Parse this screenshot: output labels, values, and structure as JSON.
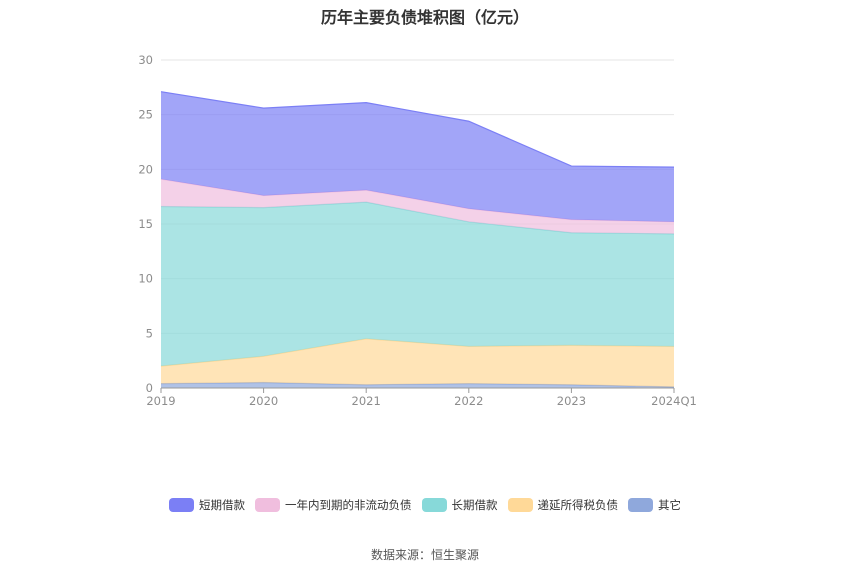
{
  "chart_data": {
    "type": "area",
    "title": "历年主要负债堆积图（亿元）",
    "categories": [
      "2019",
      "2020",
      "2021",
      "2022",
      "2023",
      "2024Q1"
    ],
    "ylim": [
      0,
      30
    ],
    "yticks": [
      "0",
      "5",
      "10",
      "15",
      "20",
      "25",
      "30"
    ],
    "stacked": true,
    "grid": "horizontal",
    "legend_position": "bottom",
    "series": [
      {
        "name": "其它",
        "color": "#8fa8dc",
        "values": [
          0.4,
          0.5,
          0.3,
          0.4,
          0.3,
          0.1
        ]
      },
      {
        "name": "递延所得税负债",
        "color": "#ffd998",
        "values": [
          1.6,
          2.4,
          4.2,
          3.4,
          3.6,
          3.7
        ]
      },
      {
        "name": "长期借款",
        "color": "#87d9d9",
        "values": [
          14.6,
          13.6,
          12.5,
          11.4,
          10.3,
          10.3
        ]
      },
      {
        "name": "一年内到期的非流动负债",
        "color": "#f0bede",
        "values": [
          2.5,
          1.1,
          1.1,
          1.2,
          1.2,
          1.1
        ]
      },
      {
        "name": "短期借款",
        "color": "#7b7ff5",
        "values": [
          8.0,
          8.0,
          8.0,
          8.0,
          4.9,
          5.0
        ]
      }
    ],
    "legend_order": [
      "短期借款",
      "一年内到期的非流动负债",
      "长期借款",
      "递延所得税负债",
      "其它"
    ]
  },
  "source_text": "数据来源：恒生聚源"
}
